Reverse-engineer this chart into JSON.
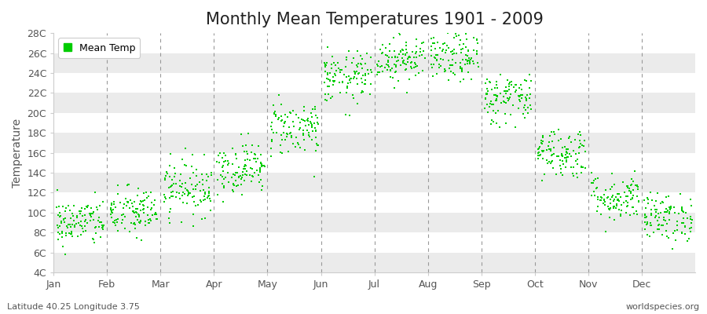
{
  "title": "Monthly Mean Temperatures 1901 - 2009",
  "ylabel": "Temperature",
  "bottom_left_text": "Latitude 40.25 Longitude 3.75",
  "bottom_right_text": "worldspecies.org",
  "legend_label": "Mean Temp",
  "marker_color": "#00CC00",
  "background_color": "#FFFFFF",
  "alt_band_color": "#EBEBEB",
  "ylim": [
    4,
    28
  ],
  "yticks": [
    4,
    6,
    8,
    10,
    12,
    14,
    16,
    18,
    20,
    22,
    24,
    26,
    28
  ],
  "ytick_labels": [
    "4C",
    "6C",
    "8C",
    "10C",
    "12C",
    "14C",
    "16C",
    "18C",
    "20C",
    "22C",
    "24C",
    "26C",
    "28C"
  ],
  "months": [
    "Jan",
    "Feb",
    "Mar",
    "Apr",
    "May",
    "Jun",
    "Jul",
    "Aug",
    "Sep",
    "Oct",
    "Nov",
    "Dec"
  ],
  "monthly_means": [
    9.0,
    10.0,
    12.5,
    14.5,
    18.5,
    23.5,
    25.5,
    25.5,
    21.5,
    16.0,
    11.5,
    9.5
  ],
  "monthly_stds": [
    1.2,
    1.3,
    1.4,
    1.3,
    1.4,
    1.3,
    1.2,
    1.2,
    1.3,
    1.3,
    1.2,
    1.2
  ],
  "n_years": 109,
  "random_seed": 42,
  "title_fontsize": 15,
  "axis_label_fontsize": 10,
  "tick_fontsize": 9,
  "marker_size": 3,
  "dpi": 100,
  "fig_width": 9.0,
  "fig_height": 4.0
}
